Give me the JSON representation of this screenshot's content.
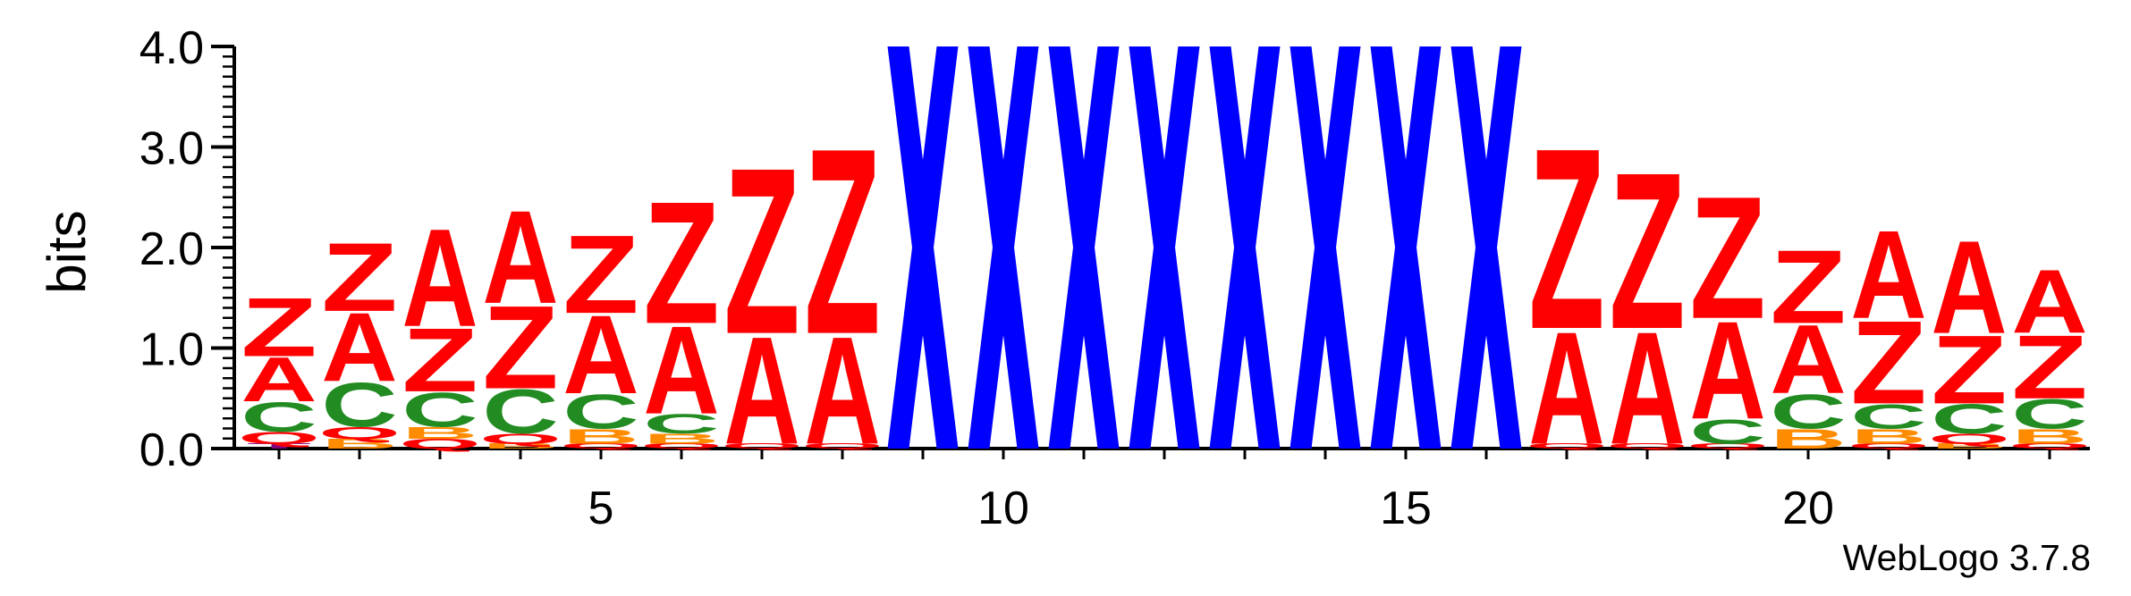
{
  "chart_data": {
    "type": "sequence-logo",
    "ylabel": "bits",
    "ylim": [
      0,
      4.0
    ],
    "y_ticks": [
      "0.0",
      "1.0",
      "2.0",
      "3.0",
      "4.0"
    ],
    "x_ticks": [
      "5",
      "10",
      "15",
      "20"
    ],
    "x_tick_positions": [
      5,
      10,
      15,
      20
    ],
    "num_positions": 23,
    "footer": "WebLogo 3.7.8",
    "colors": {
      "Z": "#ff0000",
      "A": "#ff0000",
      "C": "#228b22",
      "B": "#ff8c00",
      "Q": "#ff0000",
      "T": "#800080",
      "X": "#0000ff"
    },
    "stacks": [
      {
        "pos": 1,
        "letters": [
          {
            "char": "T",
            "height": 0.05
          },
          {
            "char": "Q",
            "height": 0.12
          },
          {
            "char": "C",
            "height": 0.3
          },
          {
            "char": "A",
            "height": 0.45
          },
          {
            "char": "Z",
            "height": 0.6
          }
        ]
      },
      {
        "pos": 2,
        "letters": [
          {
            "char": "B",
            "height": 0.1
          },
          {
            "char": "Q",
            "height": 0.12
          },
          {
            "char": "C",
            "height": 0.45
          },
          {
            "char": "A",
            "height": 0.7
          },
          {
            "char": "Z",
            "height": 0.7
          }
        ]
      },
      {
        "pos": 3,
        "letters": [
          {
            "char": "Q",
            "height": 0.1
          },
          {
            "char": "B",
            "height": 0.12
          },
          {
            "char": "C",
            "height": 0.35
          },
          {
            "char": "Z",
            "height": 0.65
          },
          {
            "char": "A",
            "height": 1.0
          }
        ]
      },
      {
        "pos": 4,
        "letters": [
          {
            "char": "B",
            "height": 0.05
          },
          {
            "char": "Q",
            "height": 0.1
          },
          {
            "char": "C",
            "height": 0.45
          },
          {
            "char": "Z",
            "height": 0.85
          },
          {
            "char": "A",
            "height": 0.95
          }
        ]
      },
      {
        "pos": 5,
        "letters": [
          {
            "char": "Q",
            "height": 0.05
          },
          {
            "char": "B",
            "height": 0.15
          },
          {
            "char": "C",
            "height": 0.35
          },
          {
            "char": "A",
            "height": 0.8
          },
          {
            "char": "Z",
            "height": 0.8
          }
        ]
      },
      {
        "pos": 6,
        "letters": [
          {
            "char": "Q",
            "height": 0.05
          },
          {
            "char": "B",
            "height": 0.1
          },
          {
            "char": "C",
            "height": 0.2
          },
          {
            "char": "A",
            "height": 0.9
          },
          {
            "char": "Z",
            "height": 1.25
          }
        ]
      },
      {
        "pos": 7,
        "letters": [
          {
            "char": "Q",
            "height": 0.05
          },
          {
            "char": "A",
            "height": 1.1
          },
          {
            "char": "Z",
            "height": 1.7
          }
        ]
      },
      {
        "pos": 8,
        "letters": [
          {
            "char": "Q",
            "height": 0.05
          },
          {
            "char": "A",
            "height": 1.1
          },
          {
            "char": "Z",
            "height": 1.9
          }
        ]
      },
      {
        "pos": 9,
        "letters": [
          {
            "char": "X",
            "height": 4.0
          }
        ]
      },
      {
        "pos": 10,
        "letters": [
          {
            "char": "X",
            "height": 4.0
          }
        ]
      },
      {
        "pos": 11,
        "letters": [
          {
            "char": "X",
            "height": 4.0
          }
        ]
      },
      {
        "pos": 12,
        "letters": [
          {
            "char": "X",
            "height": 4.0
          }
        ]
      },
      {
        "pos": 13,
        "letters": [
          {
            "char": "X",
            "height": 4.0
          }
        ]
      },
      {
        "pos": 14,
        "letters": [
          {
            "char": "X",
            "height": 4.0
          }
        ]
      },
      {
        "pos": 15,
        "letters": [
          {
            "char": "X",
            "height": 4.0
          }
        ]
      },
      {
        "pos": 16,
        "letters": [
          {
            "char": "X",
            "height": 4.0
          }
        ]
      },
      {
        "pos": 17,
        "letters": [
          {
            "char": "Q",
            "height": 0.05
          },
          {
            "char": "A",
            "height": 1.15
          },
          {
            "char": "Z",
            "height": 1.85
          }
        ]
      },
      {
        "pos": 18,
        "letters": [
          {
            "char": "Q",
            "height": 0.05
          },
          {
            "char": "A",
            "height": 1.15
          },
          {
            "char": "Z",
            "height": 1.6
          }
        ]
      },
      {
        "pos": 19,
        "letters": [
          {
            "char": "Q",
            "height": 0.05
          },
          {
            "char": "C",
            "height": 0.25
          },
          {
            "char": "A",
            "height": 1.0
          },
          {
            "char": "Z",
            "height": 1.25
          }
        ]
      },
      {
        "pos": 20,
        "letters": [
          {
            "char": "B",
            "height": 0.2
          },
          {
            "char": "C",
            "height": 0.35
          },
          {
            "char": "A",
            "height": 0.7
          },
          {
            "char": "Z",
            "height": 0.75
          }
        ]
      },
      {
        "pos": 21,
        "letters": [
          {
            "char": "Q",
            "height": 0.05
          },
          {
            "char": "B",
            "height": 0.15
          },
          {
            "char": "C",
            "height": 0.25
          },
          {
            "char": "Z",
            "height": 0.85
          },
          {
            "char": "A",
            "height": 0.9
          }
        ]
      },
      {
        "pos": 22,
        "letters": [
          {
            "char": "B",
            "height": 0.05
          },
          {
            "char": "Q",
            "height": 0.1
          },
          {
            "char": "C",
            "height": 0.3
          },
          {
            "char": "Z",
            "height": 0.7
          },
          {
            "char": "A",
            "height": 0.95
          }
        ]
      },
      {
        "pos": 23,
        "letters": [
          {
            "char": "Q",
            "height": 0.05
          },
          {
            "char": "B",
            "height": 0.15
          },
          {
            "char": "C",
            "height": 0.3
          },
          {
            "char": "Z",
            "height": 0.65
          },
          {
            "char": "A",
            "height": 0.65
          }
        ]
      }
    ]
  }
}
